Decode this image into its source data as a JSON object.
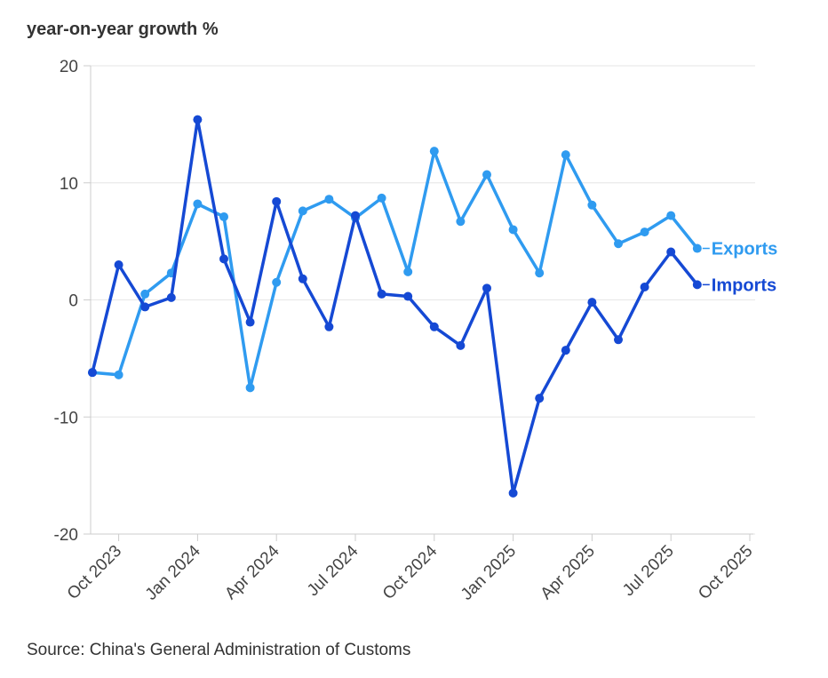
{
  "title": "year-on-year growth %",
  "source": "Source: China's General Administration of Customs",
  "colors": {
    "exports": "#2f9bf0",
    "imports": "#1549d4",
    "grid": "#e6e6e6",
    "axis": "#cccccc",
    "text": "#444444"
  },
  "chart_data": {
    "type": "line",
    "ylim": [
      -20,
      20
    ],
    "yticks": [
      -20,
      -10,
      0,
      10,
      20
    ],
    "xticks": [
      "Oct 2023",
      "Jan 2024",
      "Apr 2024",
      "Jul 2024",
      "Oct 2024",
      "Jan 2025",
      "Apr 2025",
      "Jul 2025",
      "Oct 2025"
    ],
    "x": [
      "2023-09",
      "2023-10",
      "2023-11",
      "2023-12",
      "2024-01",
      "2024-02",
      "2024-03",
      "2024-04",
      "2024-05",
      "2024-06",
      "2024-07",
      "2024-08",
      "2024-09",
      "2024-10",
      "2024-11",
      "2024-12",
      "2025-01",
      "2025-02",
      "2025-03",
      "2025-04",
      "2025-05",
      "2025-06",
      "2025-07",
      "2025-08"
    ],
    "series": [
      {
        "name": "Exports",
        "color": "#2f9bf0",
        "values": [
          -6.2,
          -6.4,
          0.5,
          2.3,
          8.2,
          7.1,
          -7.5,
          1.5,
          7.6,
          8.6,
          7.0,
          8.7,
          2.4,
          12.7,
          6.7,
          10.7,
          6.0,
          2.3,
          12.4,
          8.1,
          4.8,
          5.8,
          7.2,
          4.4
        ]
      },
      {
        "name": "Imports",
        "color": "#1549d4",
        "values": [
          -6.2,
          3.0,
          -0.6,
          0.2,
          15.4,
          3.5,
          -1.9,
          8.4,
          1.8,
          -2.3,
          7.2,
          0.5,
          0.3,
          -2.3,
          -3.9,
          1.0,
          -16.5,
          -8.4,
          -4.3,
          -0.2,
          -3.4,
          1.1,
          4.1,
          1.3
        ]
      }
    ]
  }
}
